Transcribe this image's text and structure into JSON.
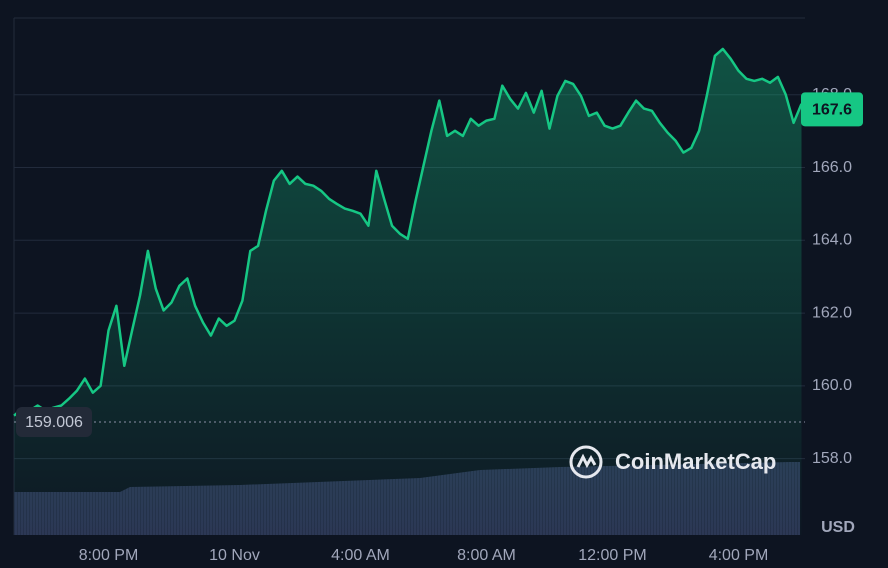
{
  "chart_data": {
    "type": "line",
    "categories": [
      null,
      null,
      null,
      null,
      null,
      null,
      null,
      null,
      null,
      null,
      null,
      null,
      "8:00 PM",
      null,
      null,
      null,
      null,
      null,
      null,
      null,
      null,
      null,
      null,
      null,
      null,
      null,
      null,
      null,
      "10 Nov",
      null,
      null,
      null,
      null,
      null,
      null,
      null,
      null,
      null,
      null,
      null,
      null,
      null,
      null,
      null,
      "4:00 AM",
      null,
      null,
      null,
      null,
      null,
      null,
      null,
      null,
      null,
      null,
      null,
      null,
      null,
      null,
      null,
      "8:00 AM",
      null,
      null,
      null,
      null,
      null,
      null,
      null,
      null,
      null,
      null,
      null,
      null,
      null,
      null,
      null,
      "12:00 PM",
      null,
      null,
      null,
      null,
      null,
      null,
      null,
      null,
      null,
      null,
      null,
      null,
      null,
      null,
      null,
      "4:00 PM",
      null,
      null,
      null,
      null,
      null,
      null,
      null,
      null
    ],
    "values": [
      159.18,
      159.37,
      159.32,
      159.46,
      159.32,
      159.4,
      159.46,
      159.65,
      159.87,
      160.2,
      159.81,
      160.0,
      161.52,
      162.2,
      160.55,
      161.52,
      162.48,
      163.71,
      162.67,
      162.07,
      162.29,
      162.75,
      162.95,
      162.2,
      161.74,
      161.38,
      161.85,
      161.65,
      161.79,
      162.34,
      163.71,
      163.85,
      164.81,
      165.64,
      165.91,
      165.55,
      165.75,
      165.55,
      165.5,
      165.36,
      165.14,
      165.0,
      164.87,
      164.81,
      164.73,
      164.4,
      165.91,
      165.14,
      164.4,
      164.18,
      164.04,
      165.09,
      166.05,
      167.01,
      167.84,
      166.87,
      167.01,
      166.87,
      167.34,
      167.15,
      167.29,
      167.34,
      168.25,
      167.89,
      167.62,
      168.05,
      167.51,
      168.11,
      167.07,
      167.97,
      168.38,
      168.3,
      167.97,
      167.42,
      167.51,
      167.15,
      167.07,
      167.15,
      167.51,
      167.84,
      167.62,
      167.56,
      167.23,
      166.96,
      166.74,
      166.41,
      166.54,
      167.01,
      168.0,
      169.07,
      169.26,
      168.99,
      168.66,
      168.44,
      168.38,
      168.44,
      168.33,
      168.49,
      168.0,
      167.23,
      167.75
    ],
    "color": "#16c784",
    "ylim": [
      155.9,
      170.11
    ],
    "yticks": [
      {
        "value": 158,
        "label": "158.0"
      },
      {
        "value": 160,
        "label": "160.0"
      },
      {
        "value": 162,
        "label": "162.0"
      },
      {
        "value": 164,
        "label": "164.0"
      },
      {
        "value": 166,
        "label": "166.0"
      },
      {
        "value": 168,
        "label": "168.0"
      }
    ],
    "grid": true,
    "y_unit": "USD",
    "current_price": 167.6,
    "open_price": 159.006,
    "watermark": "CoinMarketCap"
  }
}
